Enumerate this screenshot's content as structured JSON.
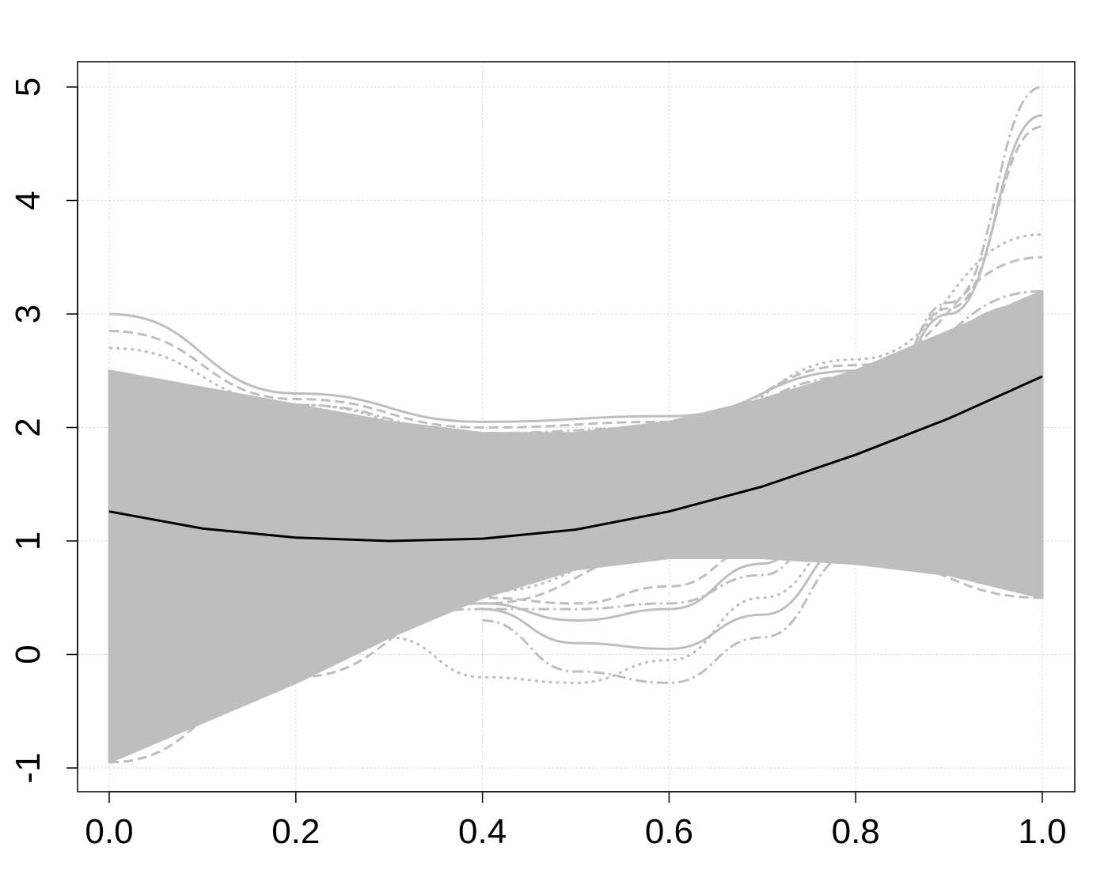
{
  "chart_data": {
    "type": "line",
    "title": "",
    "xlabel": "",
    "ylabel": "",
    "xlim": [
      0.0,
      1.0
    ],
    "ylim": [
      -1,
      5
    ],
    "grid": true,
    "x_ticks": [
      "0.0",
      "0.2",
      "0.4",
      "0.6",
      "0.8",
      "1.0"
    ],
    "y_ticks": [
      "-1",
      "0",
      "1",
      "2",
      "3",
      "4",
      "5"
    ],
    "colors": {
      "background_curves": "#bebebe",
      "mean_curve": "#000000",
      "grid": "#d3d3d3",
      "axes": "#000000"
    },
    "mean_curve": {
      "x": [
        0.0,
        0.1,
        0.2,
        0.3,
        0.4,
        0.5,
        0.6,
        0.7,
        0.8,
        0.9,
        1.0
      ],
      "y": [
        1.26,
        1.11,
        1.03,
        1.0,
        1.02,
        1.1,
        1.26,
        1.48,
        1.76,
        2.08,
        2.45
      ]
    },
    "background_band": {
      "description_values": "approximate envelope of the many grey simulated curves",
      "x": [
        0.0,
        0.1,
        0.2,
        0.3,
        0.4,
        0.5,
        0.6,
        0.7,
        0.8,
        0.9,
        1.0
      ],
      "upper": [
        2.5,
        2.35,
        2.2,
        2.05,
        1.95,
        1.95,
        2.05,
        2.25,
        2.5,
        2.85,
        3.2
      ],
      "lower": [
        -0.95,
        -0.6,
        -0.25,
        0.15,
        0.5,
        0.75,
        0.85,
        0.85,
        0.8,
        0.7,
        0.5
      ]
    },
    "background_curves": [
      {
        "x": [
          0.0,
          0.2,
          0.4,
          0.6,
          0.8,
          1.0
        ],
        "y": [
          3.0,
          2.3,
          2.05,
          2.1,
          2.5,
          3.1
        ]
      },
      {
        "x": [
          0.0,
          0.2,
          0.4,
          0.6,
          0.8,
          1.0
        ],
        "y": [
          2.85,
          2.25,
          2.0,
          2.05,
          2.55,
          3.5
        ]
      },
      {
        "x": [
          0.0,
          0.2,
          0.4,
          0.6,
          0.8,
          1.0
        ],
        "y": [
          2.7,
          2.2,
          1.9,
          1.95,
          2.6,
          3.7
        ]
      },
      {
        "x": [
          0.3,
          0.4,
          0.5,
          0.6,
          0.7,
          0.8,
          0.9,
          1.0
        ],
        "y": [
          0.35,
          0.4,
          0.4,
          0.45,
          0.7,
          1.6,
          3.1,
          5.0
        ]
      },
      {
        "x": [
          0.3,
          0.4,
          0.5,
          0.6,
          0.7,
          0.8,
          0.9,
          1.0
        ],
        "y": [
          0.4,
          0.45,
          0.3,
          0.4,
          0.8,
          1.7,
          3.0,
          4.75
        ]
      },
      {
        "x": [
          0.3,
          0.4,
          0.5,
          0.6,
          0.7,
          0.8,
          0.9,
          1.0
        ],
        "y": [
          0.45,
          0.5,
          0.45,
          0.6,
          0.95,
          1.8,
          3.05,
          4.65
        ]
      },
      {
        "x": [
          0.3,
          0.4,
          0.5,
          0.6,
          0.7,
          0.8
        ],
        "y": [
          0.15,
          -0.2,
          -0.25,
          -0.05,
          0.5,
          1.1
        ]
      },
      {
        "x": [
          0.4,
          0.5,
          0.6,
          0.7,
          0.8
        ],
        "y": [
          0.3,
          -0.15,
          -0.25,
          0.15,
          0.9
        ]
      },
      {
        "x": [
          0.4,
          0.5,
          0.6,
          0.7,
          0.8
        ],
        "y": [
          0.4,
          0.1,
          0.05,
          0.35,
          1.0
        ]
      },
      {
        "x": [
          0.0,
          0.2,
          0.4,
          0.6,
          0.8,
          1.0
        ],
        "y": [
          -0.95,
          -0.2,
          0.45,
          0.9,
          0.85,
          0.5
        ]
      },
      {
        "x": [
          0.0,
          0.2,
          0.4,
          0.6,
          0.8,
          1.0
        ],
        "y": [
          -0.6,
          -0.05,
          0.55,
          0.95,
          0.9,
          0.6
        ]
      },
      {
        "x": [
          0.0,
          0.2,
          0.4,
          0.6,
          0.8,
          1.0
        ],
        "y": [
          2.45,
          2.2,
          1.95,
          2.0,
          2.45,
          3.2
        ]
      }
    ]
  }
}
